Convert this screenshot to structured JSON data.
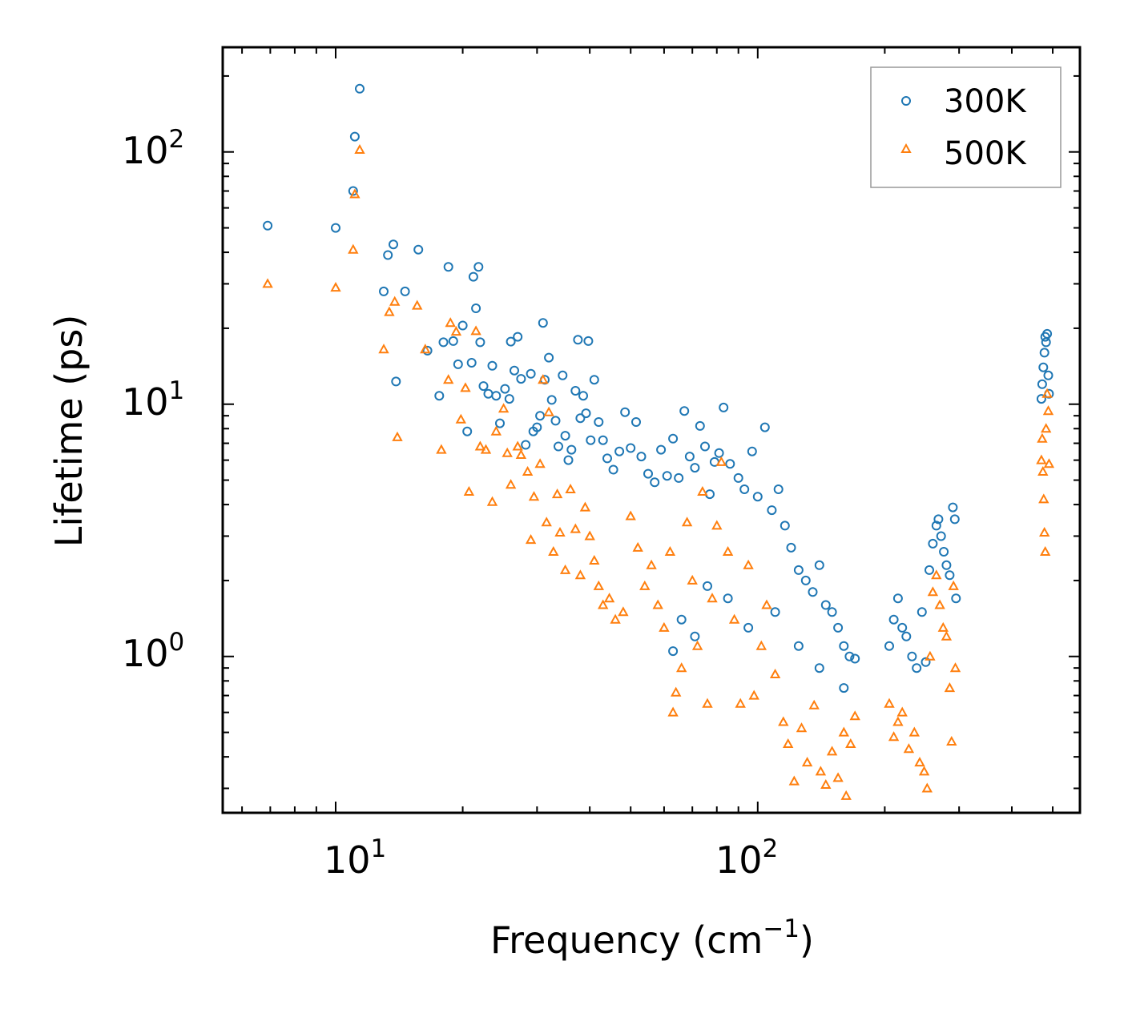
{
  "chart_data": {
    "type": "scatter",
    "title": "",
    "xlabel": "Frequency (cm",
    "xlabel_sup": "−1",
    "xlabel_close": ")",
    "ylabel": "Lifetime (ps)",
    "xscale": "log",
    "yscale": "log",
    "xlim": [
      5.4,
      580
    ],
    "ylim": [
      0.24,
      260
    ],
    "x_ticks": [
      {
        "base": "10",
        "exp": "1",
        "value": 10
      },
      {
        "base": "10",
        "exp": "2",
        "value": 100
      }
    ],
    "y_ticks": [
      {
        "base": "10",
        "exp": "0",
        "value": 1
      },
      {
        "base": "10",
        "exp": "1",
        "value": 10
      },
      {
        "base": "10",
        "exp": "2",
        "value": 100
      }
    ],
    "legend_position": "top-right",
    "series": [
      {
        "name": "300K",
        "marker": "circle",
        "color": "#1f77b4",
        "points": [
          [
            6.9,
            51
          ],
          [
            10.0,
            50
          ],
          [
            11.0,
            70
          ],
          [
            11.1,
            115
          ],
          [
            11.4,
            178
          ],
          [
            13.0,
            28
          ],
          [
            13.3,
            39
          ],
          [
            13.7,
            43
          ],
          [
            13.9,
            12.3
          ],
          [
            14.6,
            28
          ],
          [
            15.7,
            41
          ],
          [
            16.5,
            16.3
          ],
          [
            17.6,
            10.8
          ],
          [
            18.0,
            17.6
          ],
          [
            18.5,
            35
          ],
          [
            19.0,
            17.8
          ],
          [
            19.5,
            14.4
          ],
          [
            20.0,
            20.5
          ],
          [
            20.5,
            7.8
          ],
          [
            21.0,
            14.6
          ],
          [
            21.2,
            32
          ],
          [
            21.5,
            24
          ],
          [
            21.8,
            35
          ],
          [
            22.0,
            17.6
          ],
          [
            22.4,
            11.8
          ],
          [
            23.0,
            11
          ],
          [
            23.5,
            14.2
          ],
          [
            24.0,
            10.8
          ],
          [
            24.5,
            8.4
          ],
          [
            25.2,
            11.5
          ],
          [
            25.8,
            10.5
          ],
          [
            26.0,
            17.7
          ],
          [
            26.5,
            13.6
          ],
          [
            27.0,
            18.5
          ],
          [
            27.5,
            12.6
          ],
          [
            28.2,
            6.9
          ],
          [
            29.0,
            13.2
          ],
          [
            29.4,
            7.8
          ],
          [
            30.0,
            8.1
          ],
          [
            30.5,
            9
          ],
          [
            31.0,
            21
          ],
          [
            31.3,
            12.5
          ],
          [
            32.0,
            15.3
          ],
          [
            32.5,
            10.4
          ],
          [
            33.2,
            8.6
          ],
          [
            33.7,
            6.8
          ],
          [
            34.5,
            13
          ],
          [
            35.0,
            7.5
          ],
          [
            35.6,
            6
          ],
          [
            36.2,
            6.6
          ],
          [
            37.0,
            11.3
          ],
          [
            37.5,
            18
          ],
          [
            38.0,
            8.8
          ],
          [
            38.6,
            10.8
          ],
          [
            39.2,
            9.2
          ],
          [
            39.7,
            17.8
          ],
          [
            40.2,
            7.2
          ],
          [
            41.0,
            12.5
          ],
          [
            42.0,
            8.5
          ],
          [
            43.0,
            7.2
          ],
          [
            44.0,
            6.1
          ],
          [
            45.5,
            5.5
          ],
          [
            47.0,
            6.5
          ],
          [
            48.5,
            9.3
          ],
          [
            50.0,
            6.7
          ],
          [
            51.5,
            8.5
          ],
          [
            53.0,
            6.2
          ],
          [
            55.0,
            5.3
          ],
          [
            57.0,
            4.9
          ],
          [
            59.0,
            6.6
          ],
          [
            61.0,
            5.2
          ],
          [
            63.0,
            7.3
          ],
          [
            65.0,
            5.1
          ],
          [
            67.0,
            9.4
          ],
          [
            69.0,
            6.2
          ],
          [
            71.0,
            5.6
          ],
          [
            73.0,
            8.2
          ],
          [
            75.0,
            6.8
          ],
          [
            77.0,
            4.4
          ],
          [
            79.0,
            5.9
          ],
          [
            81.0,
            6.4
          ],
          [
            83.0,
            9.7
          ],
          [
            86.0,
            5.8
          ],
          [
            90.0,
            5.1
          ],
          [
            93.0,
            4.6
          ],
          [
            97.0,
            6.5
          ],
          [
            100.0,
            4.3
          ],
          [
            104.0,
            8.1
          ],
          [
            108.0,
            3.8
          ],
          [
            112.0,
            4.6
          ],
          [
            116.0,
            3.3
          ],
          [
            120.0,
            2.7
          ],
          [
            125.0,
            2.2
          ],
          [
            130.0,
            2.0
          ],
          [
            135.0,
            1.8
          ],
          [
            140.0,
            2.3
          ],
          [
            145.0,
            1.6
          ],
          [
            150.0,
            1.5
          ],
          [
            155.0,
            1.3
          ],
          [
            160.0,
            1.1
          ],
          [
            165.0,
            1.0
          ],
          [
            170.0,
            0.98
          ],
          [
            63.0,
            1.05
          ],
          [
            66.0,
            1.4
          ],
          [
            71.0,
            1.2
          ],
          [
            76.0,
            1.9
          ],
          [
            85.0,
            1.7
          ],
          [
            95.0,
            1.3
          ],
          [
            110.0,
            1.5
          ],
          [
            125.0,
            1.1
          ],
          [
            140.0,
            0.9
          ],
          [
            160.0,
            0.75
          ],
          [
            205,
            1.1
          ],
          [
            210,
            1.4
          ],
          [
            215,
            1.7
          ],
          [
            220,
            1.3
          ],
          [
            225,
            1.2
          ],
          [
            232,
            1.0
          ],
          [
            238,
            0.9
          ],
          [
            245,
            1.5
          ],
          [
            250,
            0.95
          ],
          [
            255,
            2.2
          ],
          [
            260,
            2.8
          ],
          [
            265,
            3.3
          ],
          [
            268,
            3.5
          ],
          [
            272,
            3.0
          ],
          [
            276,
            2.6
          ],
          [
            280,
            2.3
          ],
          [
            285,
            2.1
          ],
          [
            290,
            3.9
          ],
          [
            293,
            3.5
          ],
          [
            295,
            1.7
          ],
          [
            470,
            10.5
          ],
          [
            472,
            12
          ],
          [
            475,
            14
          ],
          [
            478,
            16
          ],
          [
            480,
            18.5
          ],
          [
            482,
            17.6
          ],
          [
            485,
            19
          ],
          [
            488,
            13
          ],
          [
            490,
            11
          ]
        ]
      },
      {
        "name": "500K",
        "marker": "triangle",
        "color": "#ff7f0e",
        "points": [
          [
            6.9,
            30
          ],
          [
            10.0,
            29
          ],
          [
            11.0,
            41
          ],
          [
            11.1,
            68
          ],
          [
            11.4,
            102
          ],
          [
            13.0,
            16.5
          ],
          [
            13.4,
            23.2
          ],
          [
            13.8,
            25.5
          ],
          [
            14.0,
            7.4
          ],
          [
            15.6,
            24.6
          ],
          [
            16.3,
            16.5
          ],
          [
            17.8,
            6.6
          ],
          [
            18.5,
            12.5
          ],
          [
            18.7,
            21
          ],
          [
            19.3,
            19.4
          ],
          [
            19.8,
            8.7
          ],
          [
            20.3,
            11.6
          ],
          [
            20.7,
            4.5
          ],
          [
            21.5,
            19.5
          ],
          [
            22.0,
            6.8
          ],
          [
            22.7,
            6.6
          ],
          [
            23.5,
            4.1
          ],
          [
            24.0,
            7.8
          ],
          [
            25.0,
            9.6
          ],
          [
            25.5,
            6.4
          ],
          [
            26.0,
            4.8
          ],
          [
            27.0,
            6.8
          ],
          [
            27.5,
            6.3
          ],
          [
            28.5,
            5.4
          ],
          [
            29.0,
            2.9
          ],
          [
            29.5,
            4.3
          ],
          [
            30.5,
            5.8
          ],
          [
            31.0,
            12.5
          ],
          [
            31.6,
            3.4
          ],
          [
            32.0,
            9.3
          ],
          [
            32.8,
            2.6
          ],
          [
            33.5,
            4.4
          ],
          [
            34.0,
            3.1
          ],
          [
            35.0,
            2.2
          ],
          [
            36.0,
            4.6
          ],
          [
            37.0,
            3.2
          ],
          [
            38.0,
            2.1
          ],
          [
            39.0,
            3.9
          ],
          [
            40.0,
            3.0
          ],
          [
            41.0,
            2.4
          ],
          [
            42.0,
            1.9
          ],
          [
            43.0,
            1.6
          ],
          [
            44.5,
            1.7
          ],
          [
            46.0,
            1.4
          ],
          [
            48.0,
            1.5
          ],
          [
            50.0,
            3.6
          ],
          [
            52.0,
            2.7
          ],
          [
            54.0,
            1.9
          ],
          [
            56.0,
            2.3
          ],
          [
            58.0,
            1.6
          ],
          [
            60.0,
            1.3
          ],
          [
            62.0,
            2.6
          ],
          [
            63.0,
            0.6
          ],
          [
            64.0,
            0.72
          ],
          [
            66.0,
            0.9
          ],
          [
            68.0,
            3.4
          ],
          [
            70.0,
            2.0
          ],
          [
            72.0,
            1.1
          ],
          [
            74.0,
            4.5
          ],
          [
            76.0,
            0.65
          ],
          [
            78.0,
            1.7
          ],
          [
            80.0,
            3.3
          ],
          [
            82.0,
            5.9
          ],
          [
            85.0,
            2.6
          ],
          [
            88.0,
            1.4
          ],
          [
            91.0,
            0.65
          ],
          [
            95.0,
            2.3
          ],
          [
            98.0,
            0.7
          ],
          [
            102.0,
            1.1
          ],
          [
            105.0,
            1.6
          ],
          [
            110.0,
            0.85
          ],
          [
            115.0,
            0.55
          ],
          [
            118.0,
            0.45
          ],
          [
            122.0,
            0.32
          ],
          [
            127.0,
            0.52
          ],
          [
            131.0,
            0.38
          ],
          [
            136.0,
            0.64
          ],
          [
            141.0,
            0.35
          ],
          [
            145.0,
            0.31
          ],
          [
            150.0,
            0.42
          ],
          [
            155.0,
            0.33
          ],
          [
            160.0,
            0.5
          ],
          [
            162.0,
            0.28
          ],
          [
            166.0,
            0.45
          ],
          [
            170.0,
            0.58
          ],
          [
            205,
            0.65
          ],
          [
            210,
            0.48
          ],
          [
            215,
            0.55
          ],
          [
            220,
            0.6
          ],
          [
            228,
            0.43
          ],
          [
            235,
            0.5
          ],
          [
            242,
            0.38
          ],
          [
            248,
            0.35
          ],
          [
            252,
            0.3
          ],
          [
            256,
            1.0
          ],
          [
            260,
            1.8
          ],
          [
            265,
            2.1
          ],
          [
            270,
            1.6
          ],
          [
            275,
            1.3
          ],
          [
            280,
            1.2
          ],
          [
            285,
            0.75
          ],
          [
            288,
            0.46
          ],
          [
            291,
            1.9
          ],
          [
            294,
            0.9
          ],
          [
            470,
            6
          ],
          [
            472,
            7.3
          ],
          [
            474,
            5.4
          ],
          [
            476,
            4.2
          ],
          [
            478,
            3.1
          ],
          [
            480,
            2.6
          ],
          [
            482,
            8
          ],
          [
            485,
            11
          ],
          [
            488,
            9.4
          ],
          [
            490,
            5.8
          ]
        ]
      }
    ]
  }
}
